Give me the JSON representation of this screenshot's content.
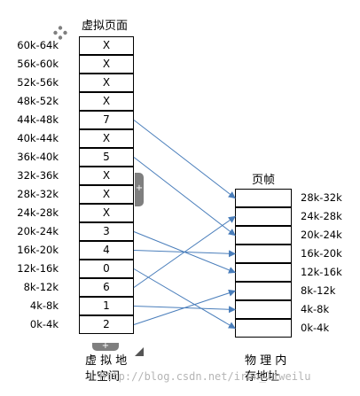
{
  "virtual": {
    "title": "虚拟页面",
    "caption_line1": "虚 拟 地",
    "caption_line2": "址空间",
    "labels": [
      "60k-64k",
      "56k-60k",
      "52k-56k",
      "48k-52k",
      "44k-48k",
      "40k-44k",
      "36k-40k",
      "32k-36k",
      "28k-32k",
      "24k-28k",
      "20k-24k",
      "16k-20k",
      "12k-16k",
      "8k-12k",
      "4k-8k",
      "0k-4k"
    ],
    "cells": [
      "X",
      "X",
      "X",
      "X",
      "7",
      "X",
      "5",
      "X",
      "X",
      "X",
      "3",
      "4",
      "0",
      "6",
      "1",
      "2"
    ]
  },
  "physical": {
    "title": "页帧",
    "caption_line1": "物 理 内",
    "caption_line2": "存地址",
    "labels": [
      "28k-32k",
      "24k-28k",
      "20k-24k",
      "16k-20k",
      "12k-16k",
      "8k-12k",
      "4k-8k",
      "0k-4k"
    ]
  },
  "colors": {
    "arrow": "#4a7ebb",
    "border": "#000000",
    "handle": "#7f7f7f"
  },
  "watermark": "http://blog.csdn.net/iron_liweilu"
}
